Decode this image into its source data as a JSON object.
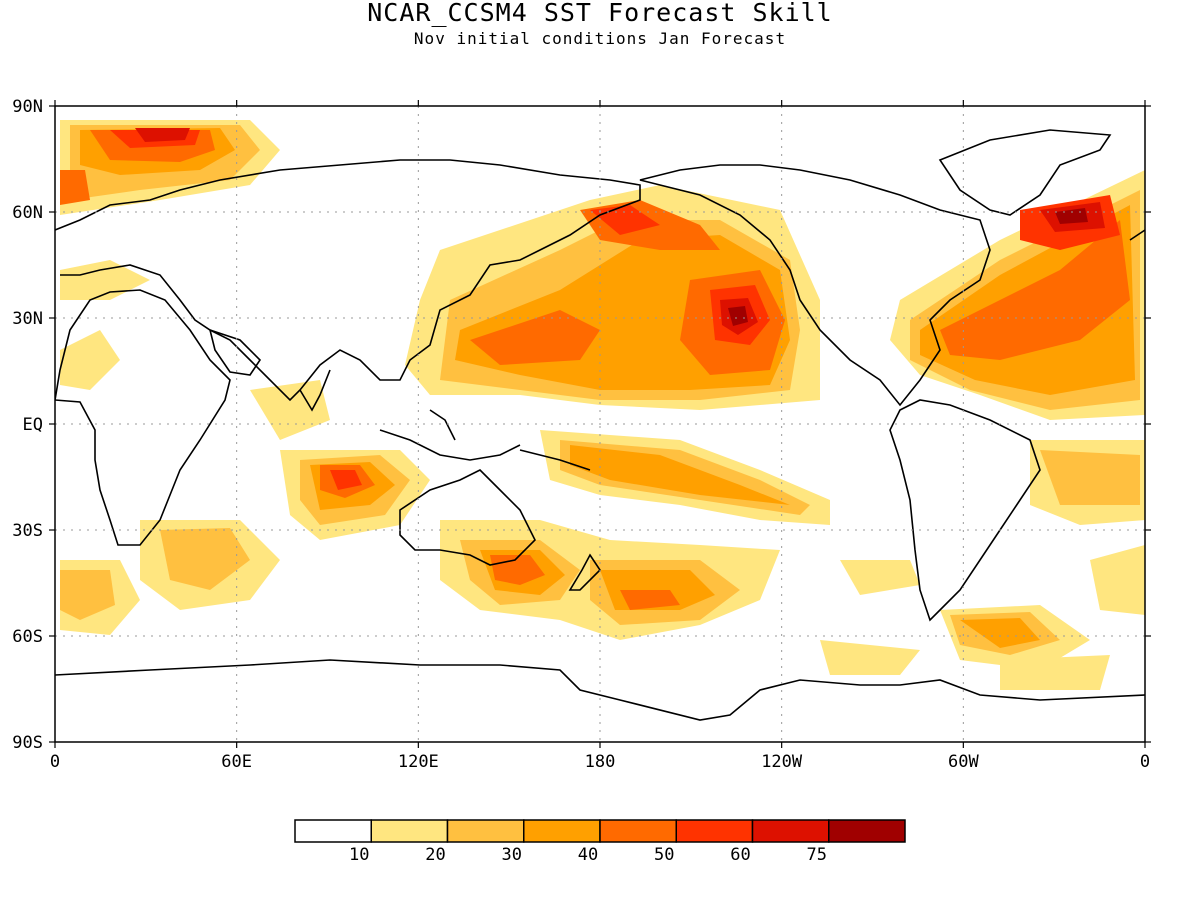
{
  "title": "NCAR_CCSM4 SST Forecast Skill",
  "subtitle": "Nov initial conditions  Jan Forecast",
  "map": {
    "lon_ticks": [
      "0",
      "60E",
      "120E",
      "180",
      "120W",
      "60W",
      "0"
    ],
    "lat_ticks": [
      "90N",
      "60N",
      "30N",
      "EQ",
      "30S",
      "60S",
      "90S"
    ]
  },
  "legend": {
    "labels": [
      "10",
      "20",
      "30",
      "40",
      "50",
      "60",
      "75"
    ],
    "colors": [
      "#ffffff",
      "#ffe680",
      "#ffc040",
      "#ffa000",
      "#ff6a00",
      "#ff3300",
      "#dd1100",
      "#a00000"
    ]
  },
  "colors": {
    "grid": "#999999",
    "frame": "#000000"
  }
}
